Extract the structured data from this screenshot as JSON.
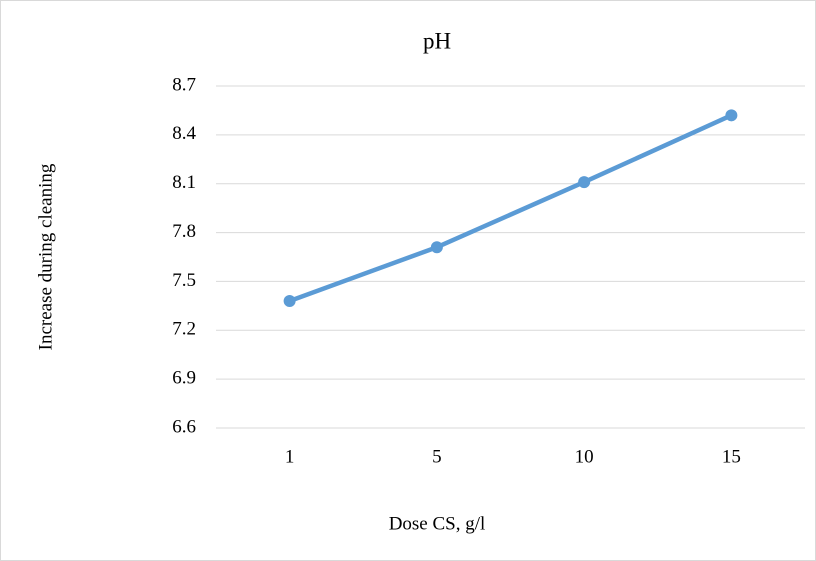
{
  "chart_data": {
    "type": "line",
    "title": "pH",
    "x_label": "Dose CS, g/l",
    "y_label": "Increase during cleaning",
    "categories": [
      "1",
      "5",
      "10",
      "15"
    ],
    "values": [
      7.38,
      7.71,
      8.11,
      8.52
    ],
    "color": "#5b9bd5",
    "ylim": [
      6.6,
      8.7
    ],
    "yticks": [
      6.6,
      6.9,
      7.2,
      7.5,
      7.8,
      8.1,
      8.4,
      8.7
    ],
    "grid": true
  }
}
